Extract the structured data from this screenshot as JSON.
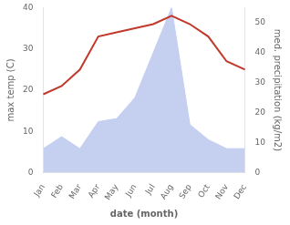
{
  "chart_data": {
    "type": "line",
    "xlabel": "date (month)",
    "ylabel": "max temp (C)",
    "y2label": "med. precipitation (kg/m2)",
    "categories": [
      "Jan",
      "Feb",
      "Mar",
      "Apr",
      "May",
      "Jun",
      "Jul",
      "Aug",
      "Sep",
      "Oct",
      "Nov",
      "Dec"
    ],
    "series": [
      {
        "type": "area",
        "color": "#c5cff0",
        "axis": "y2",
        "values": [
          8,
          12,
          8,
          17,
          18,
          25,
          40,
          55,
          16,
          11,
          8,
          8
        ]
      },
      {
        "type": "line",
        "color": "#c0392b",
        "values": [
          19,
          21,
          25,
          33,
          34,
          35,
          36,
          38,
          36,
          33,
          27,
          25
        ]
      }
    ],
    "ylim": [
      0,
      40
    ],
    "yticks": [
      0,
      10,
      20,
      30,
      40
    ],
    "y2lim": [
      0,
      55
    ],
    "y2ticks": [
      0,
      10,
      20,
      30,
      40,
      50
    ],
    "grid": false
  }
}
